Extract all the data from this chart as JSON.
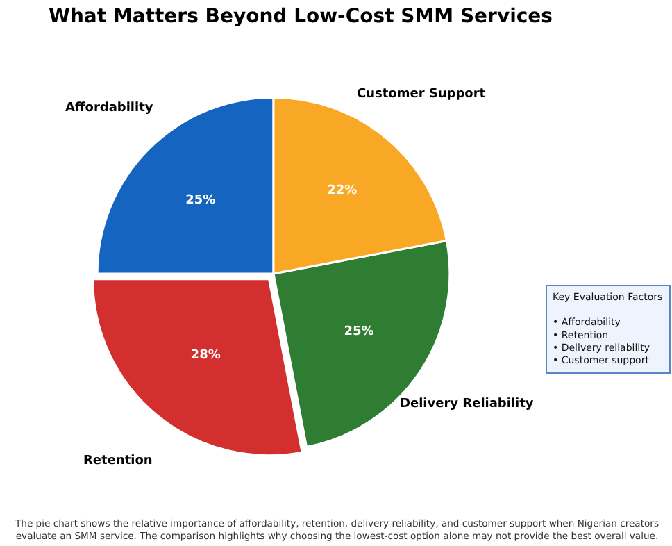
{
  "chart_data": {
    "type": "pie",
    "title": "What Matters Beyond Low-Cost SMM Services",
    "categories": [
      "Affordability",
      "Retention",
      "Delivery Reliability",
      "Customer Support"
    ],
    "values": [
      25,
      28,
      25,
      22
    ],
    "colors": [
      "#1565c0",
      "#d32f2f",
      "#2e7d32",
      "#f9a825"
    ],
    "value_labels": [
      "25%",
      "28%",
      "25%",
      "22%"
    ],
    "legend": false,
    "annotations": [
      "Key Evaluation Factors\n\n• Affordability\n• Retention\n• Delivery reliability\n• Customer support",
      "The pie chart shows the relative importance of affordability, retention, delivery reliability, and customer support when Nigerian creators\nevaluate an SMM service. The comparison highlights why choosing the lowest-cost option alone may not provide the best overall value."
    ]
  }
}
